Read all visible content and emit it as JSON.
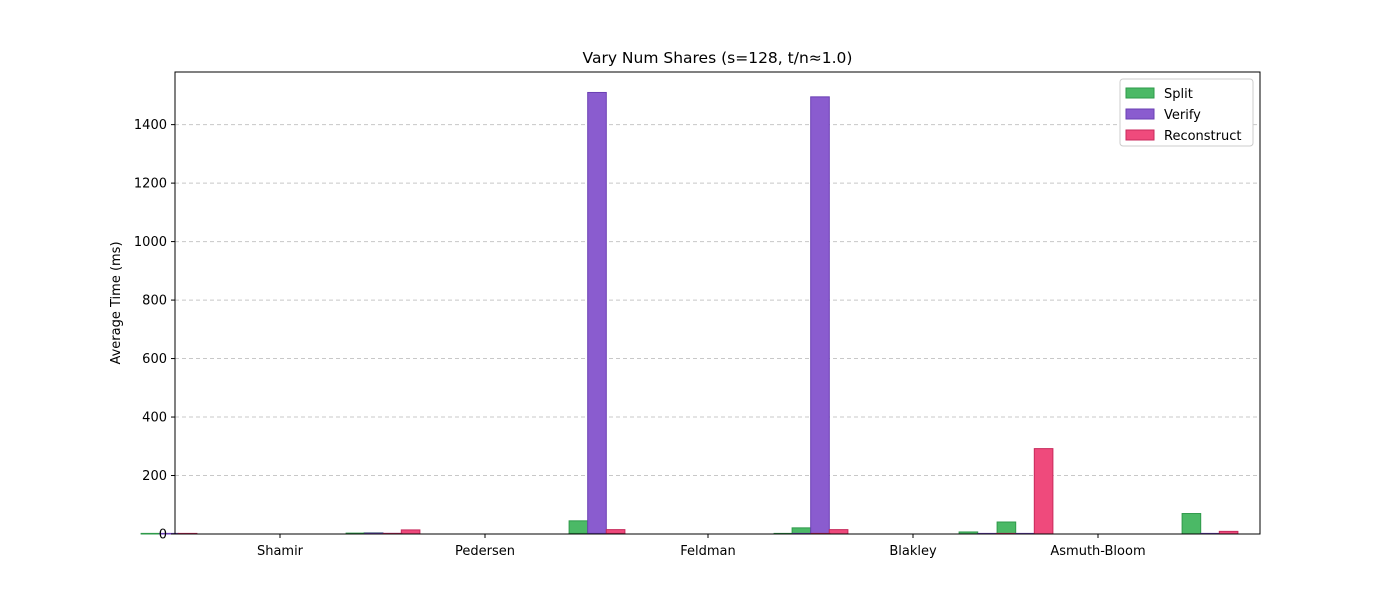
{
  "chart_data": {
    "type": "bar",
    "title": "Vary Num Shares (s=128, t/n≈1.0)",
    "xlabel": "",
    "ylabel": "Average Time (ms)",
    "ylim": [
      0,
      1580
    ],
    "yticks": [
      0,
      200,
      400,
      600,
      800,
      1000,
      1200,
      1400
    ],
    "grid": "y-dashed",
    "legend_position": "top-right",
    "categories": [
      "Shamir",
      "Pedersen",
      "Feldman",
      "Blakley",
      "Asmuth-Bloom"
    ],
    "groups_per_category": 2,
    "series": [
      {
        "name": "Split",
        "color": "#4bb966",
        "edge": "#2e9a4a",
        "values": [
          [
            0.5,
            4
          ],
          [
            3,
            45
          ],
          [
            2,
            21
          ],
          [
            0.5,
            41
          ],
          [
            7,
            70
          ]
        ]
      },
      {
        "name": "Verify",
        "color": "#8a5ccf",
        "edge": "#6a3fb3",
        "values": [
          [
            0.2,
            0.3
          ],
          [
            3,
            1510
          ],
          [
            2,
            1495
          ],
          [
            0.2,
            0.3
          ],
          [
            0.2,
            0.3
          ]
        ]
      },
      {
        "name": "Reconstruct",
        "color": "#ef4a7c",
        "edge": "#c82a5c",
        "values": [
          [
            0.3,
            14
          ],
          [
            0.3,
            15
          ],
          [
            0.3,
            15
          ],
          [
            0.5,
            292
          ],
          [
            0.3,
            9
          ]
        ]
      }
    ]
  }
}
